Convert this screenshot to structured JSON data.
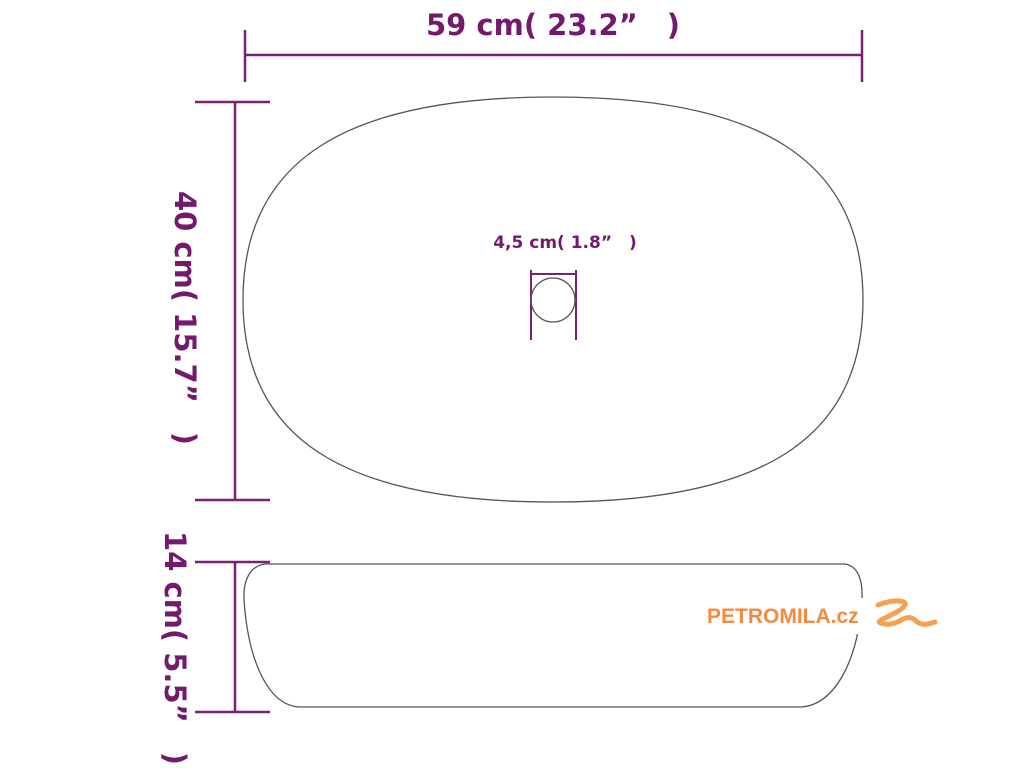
{
  "dimensions": {
    "width": "59 cm( 23.2”　)",
    "depth": "40 cm( 15.7”　)",
    "drain": "4,5 cm( 1.8”　)",
    "height": "14 cm( 5.5”　)"
  },
  "logo": {
    "text": "PETROMILA.cz"
  },
  "colors": {
    "dimension": "#731a6c",
    "outline": "#555555",
    "logo": "#f58a3c"
  }
}
